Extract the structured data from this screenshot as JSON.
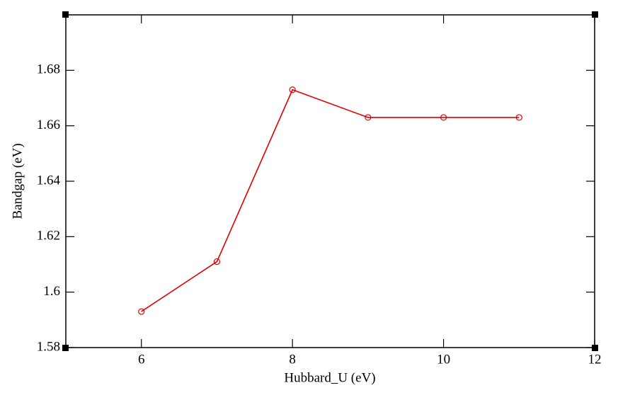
{
  "chart_data": {
    "type": "line",
    "x_label": "Hubbard_U (eV)",
    "y_label": "Bandgap (eV)",
    "x": [
      6,
      7,
      8,
      9,
      10,
      11
    ],
    "values": [
      1.593,
      1.611,
      1.673,
      1.663,
      1.663,
      1.663
    ],
    "color": "#e00000",
    "xlim": [
      5,
      12
    ],
    "xticks": [
      6,
      8,
      10,
      12
    ],
    "ylim": [
      1.58,
      1.7
    ],
    "yticks": [
      1.58,
      1.6,
      1.62,
      1.64,
      1.66,
      1.68
    ],
    "grid": false
  }
}
